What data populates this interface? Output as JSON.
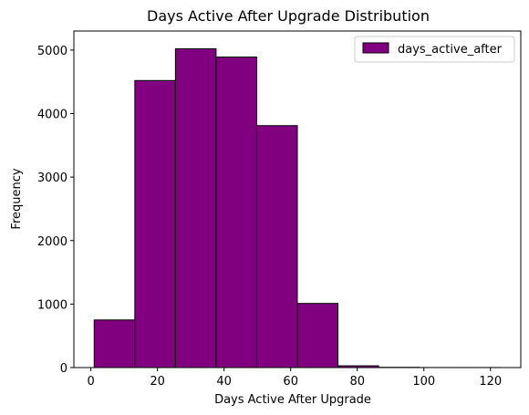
{
  "chart_data": {
    "type": "bar",
    "title": "Days Active After Upgrade Distribution",
    "xlabel": "Days Active After Upgrade",
    "ylabel": "Frequency",
    "bin_edges": [
      1,
      13.2,
      25.4,
      37.6,
      49.8,
      62.0,
      74.2,
      86.4,
      98.6,
      110.8,
      123
    ],
    "series": [
      {
        "name": "days_active_after",
        "values": [
          750,
          4520,
          5020,
          4890,
          3810,
          1010,
          28,
          4,
          1,
          1
        ]
      }
    ],
    "xlim": [
      -5.1,
      129.1
    ],
    "ylim": [
      0,
      5300
    ],
    "xticks": [
      0,
      20,
      40,
      60,
      80,
      100,
      120
    ],
    "yticks": [
      0,
      1000,
      2000,
      3000,
      4000,
      5000
    ],
    "grid": false,
    "legend_position": "top-right",
    "colors": {
      "bar_fill": "#800080",
      "bar_edge": "#000000"
    }
  }
}
